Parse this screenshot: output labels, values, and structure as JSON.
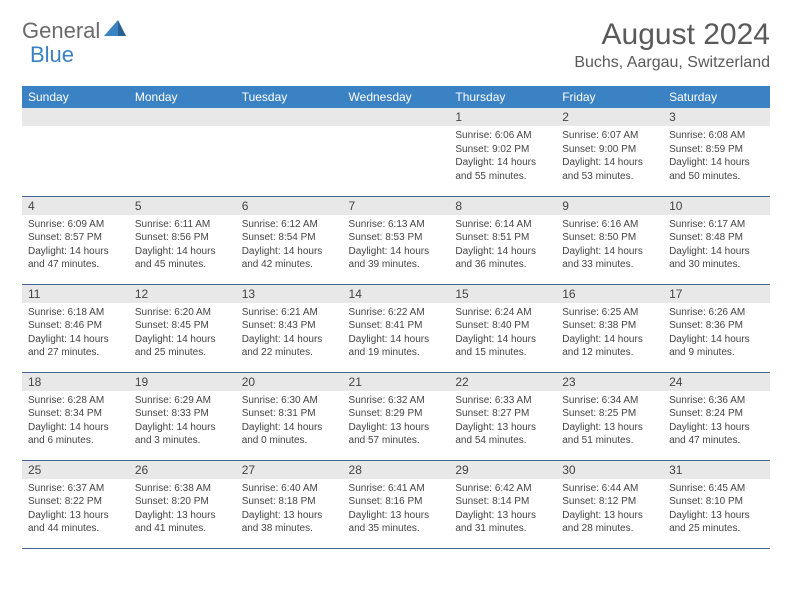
{
  "logo": {
    "text1": "General",
    "text2": "Blue"
  },
  "header": {
    "month": "August 2024",
    "location": "Buchs, Aargau, Switzerland"
  },
  "colors": {
    "header_bg": "#3b82c4",
    "header_text": "#ffffff",
    "daynum_bg": "#e8e8e8",
    "border": "#3b6a99",
    "logo_gray": "#6b6b6b",
    "logo_blue": "#3b82c4"
  },
  "dayNames": [
    "Sunday",
    "Monday",
    "Tuesday",
    "Wednesday",
    "Thursday",
    "Friday",
    "Saturday"
  ],
  "weeks": [
    [
      null,
      null,
      null,
      null,
      {
        "n": "1",
        "sunrise": "6:06 AM",
        "sunset": "9:02 PM",
        "dl_h": 14,
        "dl_m": 55
      },
      {
        "n": "2",
        "sunrise": "6:07 AM",
        "sunset": "9:00 PM",
        "dl_h": 14,
        "dl_m": 53
      },
      {
        "n": "3",
        "sunrise": "6:08 AM",
        "sunset": "8:59 PM",
        "dl_h": 14,
        "dl_m": 50
      }
    ],
    [
      {
        "n": "4",
        "sunrise": "6:09 AM",
        "sunset": "8:57 PM",
        "dl_h": 14,
        "dl_m": 47
      },
      {
        "n": "5",
        "sunrise": "6:11 AM",
        "sunset": "8:56 PM",
        "dl_h": 14,
        "dl_m": 45
      },
      {
        "n": "6",
        "sunrise": "6:12 AM",
        "sunset": "8:54 PM",
        "dl_h": 14,
        "dl_m": 42
      },
      {
        "n": "7",
        "sunrise": "6:13 AM",
        "sunset": "8:53 PM",
        "dl_h": 14,
        "dl_m": 39
      },
      {
        "n": "8",
        "sunrise": "6:14 AM",
        "sunset": "8:51 PM",
        "dl_h": 14,
        "dl_m": 36
      },
      {
        "n": "9",
        "sunrise": "6:16 AM",
        "sunset": "8:50 PM",
        "dl_h": 14,
        "dl_m": 33
      },
      {
        "n": "10",
        "sunrise": "6:17 AM",
        "sunset": "8:48 PM",
        "dl_h": 14,
        "dl_m": 30
      }
    ],
    [
      {
        "n": "11",
        "sunrise": "6:18 AM",
        "sunset": "8:46 PM",
        "dl_h": 14,
        "dl_m": 27
      },
      {
        "n": "12",
        "sunrise": "6:20 AM",
        "sunset": "8:45 PM",
        "dl_h": 14,
        "dl_m": 25
      },
      {
        "n": "13",
        "sunrise": "6:21 AM",
        "sunset": "8:43 PM",
        "dl_h": 14,
        "dl_m": 22
      },
      {
        "n": "14",
        "sunrise": "6:22 AM",
        "sunset": "8:41 PM",
        "dl_h": 14,
        "dl_m": 19
      },
      {
        "n": "15",
        "sunrise": "6:24 AM",
        "sunset": "8:40 PM",
        "dl_h": 14,
        "dl_m": 15
      },
      {
        "n": "16",
        "sunrise": "6:25 AM",
        "sunset": "8:38 PM",
        "dl_h": 14,
        "dl_m": 12
      },
      {
        "n": "17",
        "sunrise": "6:26 AM",
        "sunset": "8:36 PM",
        "dl_h": 14,
        "dl_m": 9
      }
    ],
    [
      {
        "n": "18",
        "sunrise": "6:28 AM",
        "sunset": "8:34 PM",
        "dl_h": 14,
        "dl_m": 6
      },
      {
        "n": "19",
        "sunrise": "6:29 AM",
        "sunset": "8:33 PM",
        "dl_h": 14,
        "dl_m": 3
      },
      {
        "n": "20",
        "sunrise": "6:30 AM",
        "sunset": "8:31 PM",
        "dl_h": 14,
        "dl_m": 0
      },
      {
        "n": "21",
        "sunrise": "6:32 AM",
        "sunset": "8:29 PM",
        "dl_h": 13,
        "dl_m": 57
      },
      {
        "n": "22",
        "sunrise": "6:33 AM",
        "sunset": "8:27 PM",
        "dl_h": 13,
        "dl_m": 54
      },
      {
        "n": "23",
        "sunrise": "6:34 AM",
        "sunset": "8:25 PM",
        "dl_h": 13,
        "dl_m": 51
      },
      {
        "n": "24",
        "sunrise": "6:36 AM",
        "sunset": "8:24 PM",
        "dl_h": 13,
        "dl_m": 47
      }
    ],
    [
      {
        "n": "25",
        "sunrise": "6:37 AM",
        "sunset": "8:22 PM",
        "dl_h": 13,
        "dl_m": 44
      },
      {
        "n": "26",
        "sunrise": "6:38 AM",
        "sunset": "8:20 PM",
        "dl_h": 13,
        "dl_m": 41
      },
      {
        "n": "27",
        "sunrise": "6:40 AM",
        "sunset": "8:18 PM",
        "dl_h": 13,
        "dl_m": 38
      },
      {
        "n": "28",
        "sunrise": "6:41 AM",
        "sunset": "8:16 PM",
        "dl_h": 13,
        "dl_m": 35
      },
      {
        "n": "29",
        "sunrise": "6:42 AM",
        "sunset": "8:14 PM",
        "dl_h": 13,
        "dl_m": 31
      },
      {
        "n": "30",
        "sunrise": "6:44 AM",
        "sunset": "8:12 PM",
        "dl_h": 13,
        "dl_m": 28
      },
      {
        "n": "31",
        "sunrise": "6:45 AM",
        "sunset": "8:10 PM",
        "dl_h": 13,
        "dl_m": 25
      }
    ]
  ]
}
